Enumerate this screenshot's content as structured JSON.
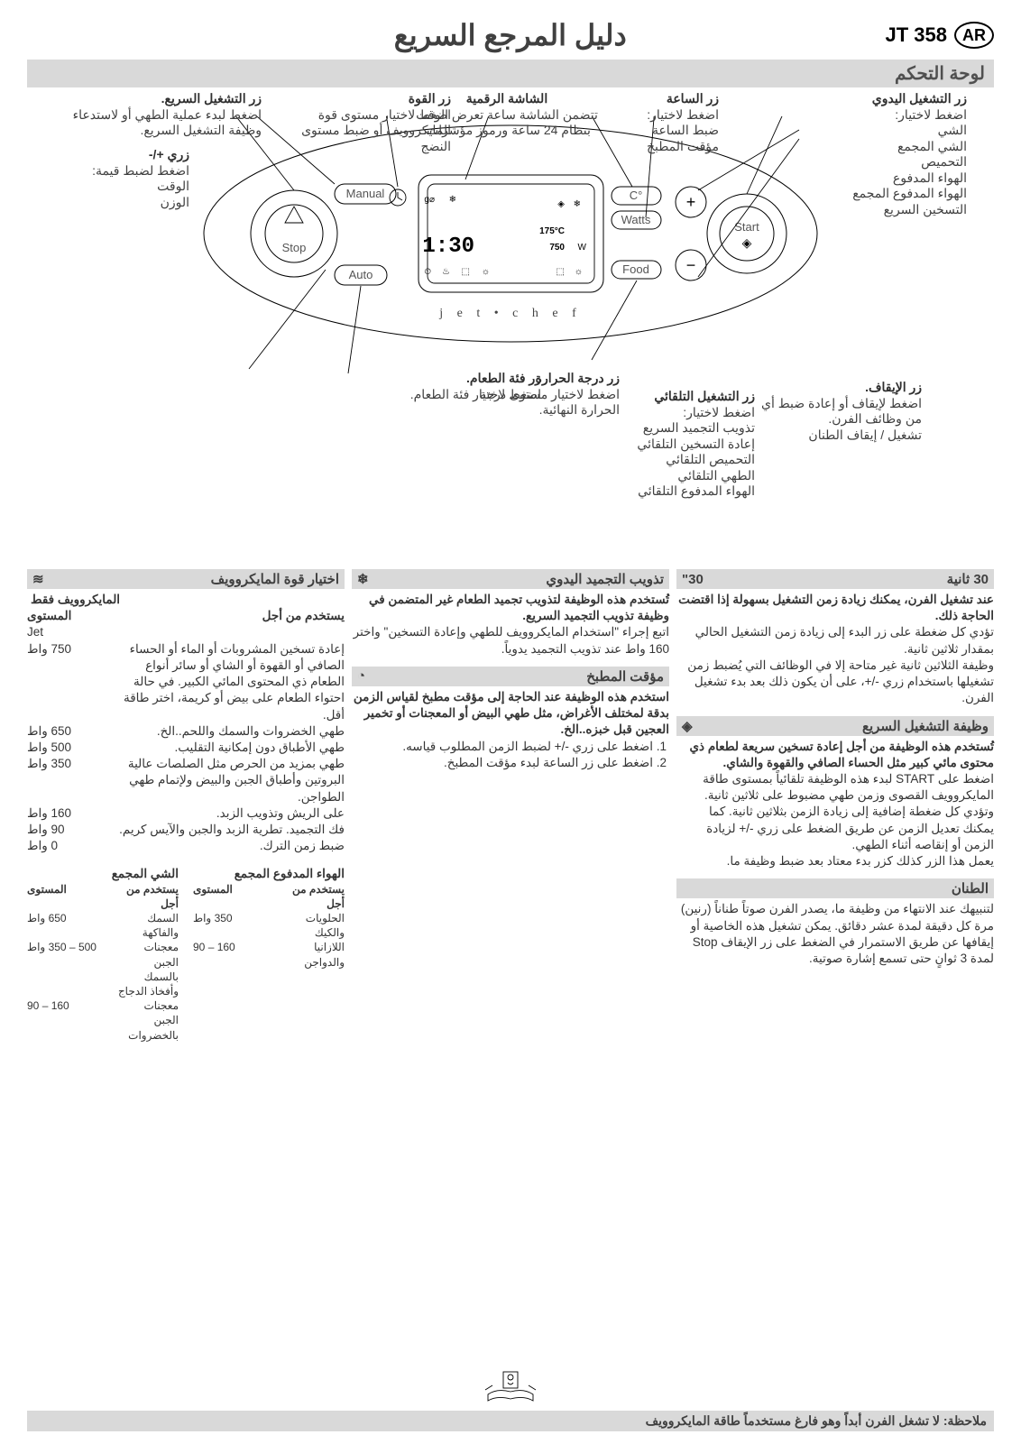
{
  "header": {
    "main_title": "دليل المرجع السريع",
    "model": "JT 358",
    "lang_badge": "AR",
    "panel_title": "لوحة التحكم"
  },
  "callouts": {
    "manual": {
      "h": "زر التشغيل اليدوي",
      "t": "اضغط لاختيار:\nالشي\nالشي المجمع\nالتحميص\nالهواء المدفوع\nالهواء المدفوع المجمع\nالتسخين السريع"
    },
    "stop": {
      "h": "زر الإيقاف.",
      "t": "اضغط لإيقاف أو إعادة ضبط أي من وظائف الفرن.\nتشغيل / إيقاف الطنان"
    },
    "clock": {
      "h": "زر الساعة",
      "t": "اضغط لاختيار:\nضبط الساعة\nمؤقت المطبخ"
    },
    "display": {
      "h": "الشاشة الرقمية",
      "t": "تتضمن الشاشة ساعة تعرض الوقت بنظام 24 ساعة ورموز مؤشرات."
    },
    "power": {
      "h": "زر القوة",
      "t": "اضغط لاختيار مستوى قوة المايكروويف أو ضبط مستوى النضج"
    },
    "jet": {
      "h": "زر التشغيل السريع.",
      "t": "اضغط لبدء عملية الطهي أو لاستدعاء وظيفة التشغيل السريع."
    },
    "temp": {
      "h": "زر درجة الحرارة",
      "t": "اضغط لاختيار مستوى درجة الحرارة النهائية."
    },
    "plusminus": {
      "h": "زري +/-",
      "t": "اضغط لضبط قيمة:\nالوقت\nالوزن"
    },
    "auto": {
      "h": "زر التشغيل التلقائي",
      "t": "اضغط لاختيار:\nتذويب التجميد السريع\nإعادة التسخين التلقائي\nالتحميص التلقائي\nالطهي التلقائي\nالهواء المدفوع التلقائي"
    },
    "food": {
      "h": "زر فئة الطعام.",
      "t": "اضغط لاختيار فئة الطعام."
    }
  },
  "panel": {
    "stop": "Stop",
    "manual": "Manual",
    "auto": "Auto",
    "watts": "Watts",
    "c": "°C",
    "food": "Food",
    "start": "Start",
    "jetchef": "j e t • c h e f",
    "disp_time": "1:30",
    "disp_temp": "175°C",
    "disp_pw": "750W"
  },
  "s30": {
    "title": "30 ثانية",
    "badge": "30\"",
    "p1": "عند تشغيل الفرن، يمكنك زيادة زمن التشغيل بسهولة إذا اقتضت الحاجة ذلك.",
    "p2": "تؤدي كل ضغطة على زر البدء إلى زيادة زمن التشغيل الحالي بمقدار ثلاثين ثانية.",
    "p3": "وظيفة الثلاثين ثانية غير متاحة إلا في الوظائف التي يُضبط زمن تشغيلها باستخدام زري -/+، على أن يكون ذلك بعد بدء تشغيل الفرن."
  },
  "jetstart": {
    "title": "وظيفة التشغيل السريع",
    "icon": "◈",
    "p1": "تُستخدم هذه الوظيفة من أجل إعادة تسخين سريعة لطعام ذي محتوى مائي كبير مثل الحساء الصافي والقهوة والشاي.",
    "p2": "اضغط على START لبدء هذه الوظيفة تلقائياً بمستوى طاقة المايكروويف القصوى وزمن طهي مضبوط على ثلاثين ثانية. وتؤدي كل ضغطة إضافية إلى زيادة الزمن بثلاثين ثانية. كما يمكنك تعديل الزمن عن طريق الضغط على زري -/+ لزيادة الزمن أو إنقاصه أثناء الطهي.",
    "p3": "يعمل هذا الزر كذلك كزر بدء معتاد بعد ضبط وظيفة ما."
  },
  "buzzer": {
    "title": "الطنان",
    "p": "لتنبيهك عند الانتهاء من وظيفة ما، يصدر الفرن صوتاً طناناً (رنين) مرة كل دقيقة لمدة عشر دقائق. يمكن تشغيل هذه الخاصية أو إيقافها عن طريق الاستمرار في الضغط على زر الإيقاف Stop لمدة 3 ثوانٍ حتى تسمع إشارة صوتية."
  },
  "manual_defrost": {
    "title": "تذويب التجميد اليدوي",
    "icon": "❄",
    "p1": "تُستخدم هذه الوظيفة لتذويب تجميد الطعام غير المتضمن في وظيفة تذويب التجميد السريع.",
    "p2": "اتبع إجراء \"استخدام المايكروويف للطهي وإعادة التسخين\" واختر 160 واط عند تذويب التجميد يدوياً."
  },
  "timer": {
    "title": "مؤقت المطبخ",
    "icon": "◔",
    "lead": "استخدم هذه الوظيفة عند الحاجة إلى مؤقت مطبخ لقياس الزمن بدقة لمختلف الأغراض، مثل طهي البيض أو المعجنات أو تخمير العجين قبل خبزه..الخ.",
    "s1": "اضغط على زري -/+ لضبط الزمن المطلوب قياسه.",
    "s2": "اضغط على زر الساعة لبدء مؤقت المطبخ."
  },
  "mw_power": {
    "title": "اختيار قوة المايكروويف",
    "subtitle": "المايكروويف فقط",
    "level_h": "المستوى",
    "use_h": "يستخدم من أجل",
    "rows": [
      {
        "w": "Jet",
        "u": ""
      },
      {
        "w": "750 واط",
        "u": "إعادة تسخين المشروبات أو الماء أو الحساء الصافي أو القهوة أو الشاي أو سائر أنواع الطعام ذي المحتوى المائي الكبير. في حالة احتواء الطعام على بيض أو كريمة، اختر طاقة أقل."
      },
      {
        "w": "650 واط",
        "u": "طهي الخضروات والسمك واللحم..الخ."
      },
      {
        "w": "500 واط",
        "u": "طهي الأطباق دون إمكانية التقليب."
      },
      {
        "w": "350 واط",
        "u": "طهي بمزيد من الحرص مثل الصلصات عالية البروتين وأطباق الجبن والبيض ولإتمام طهي الطواجن."
      },
      {
        "w": "160 واط",
        "u": "على الريش وتذويب الزبد."
      },
      {
        "w": "90 واط",
        "u": "فك التجميد. تطرية الزبد والجبن والآيس كريم."
      },
      {
        "w": "0 واط",
        "u": "ضبط زمن الترك."
      }
    ],
    "combi_fa": {
      "h": "الهواء المدفوع المجمع",
      "level": "المستوى",
      "use": "يستخدم من أجل",
      "rows": [
        {
          "w": "350 واط",
          "u": "الحلويات والكيك"
        },
        {
          "w": "160 – 90",
          "u": "اللازانيا والدواجن"
        }
      ]
    },
    "combi_grill": {
      "h": "الشي المجمع",
      "level": "المستوى",
      "use": "يستخدم من أجل",
      "rows": [
        {
          "w": "650 واط",
          "u": "السمك والفاكهة"
        },
        {
          "w": "500 – 350 واط",
          "u": "معجنات الجبن بالسمك وأفخاذ الدجاج"
        },
        {
          "w": "160 – 90",
          "u": "معجنات الجبن بالخضروات"
        }
      ]
    }
  },
  "footer_note": "ملاحظة: لا تشغل الفرن أبداً وهو فارغ مستخدماً طاقة المايكروويف"
}
